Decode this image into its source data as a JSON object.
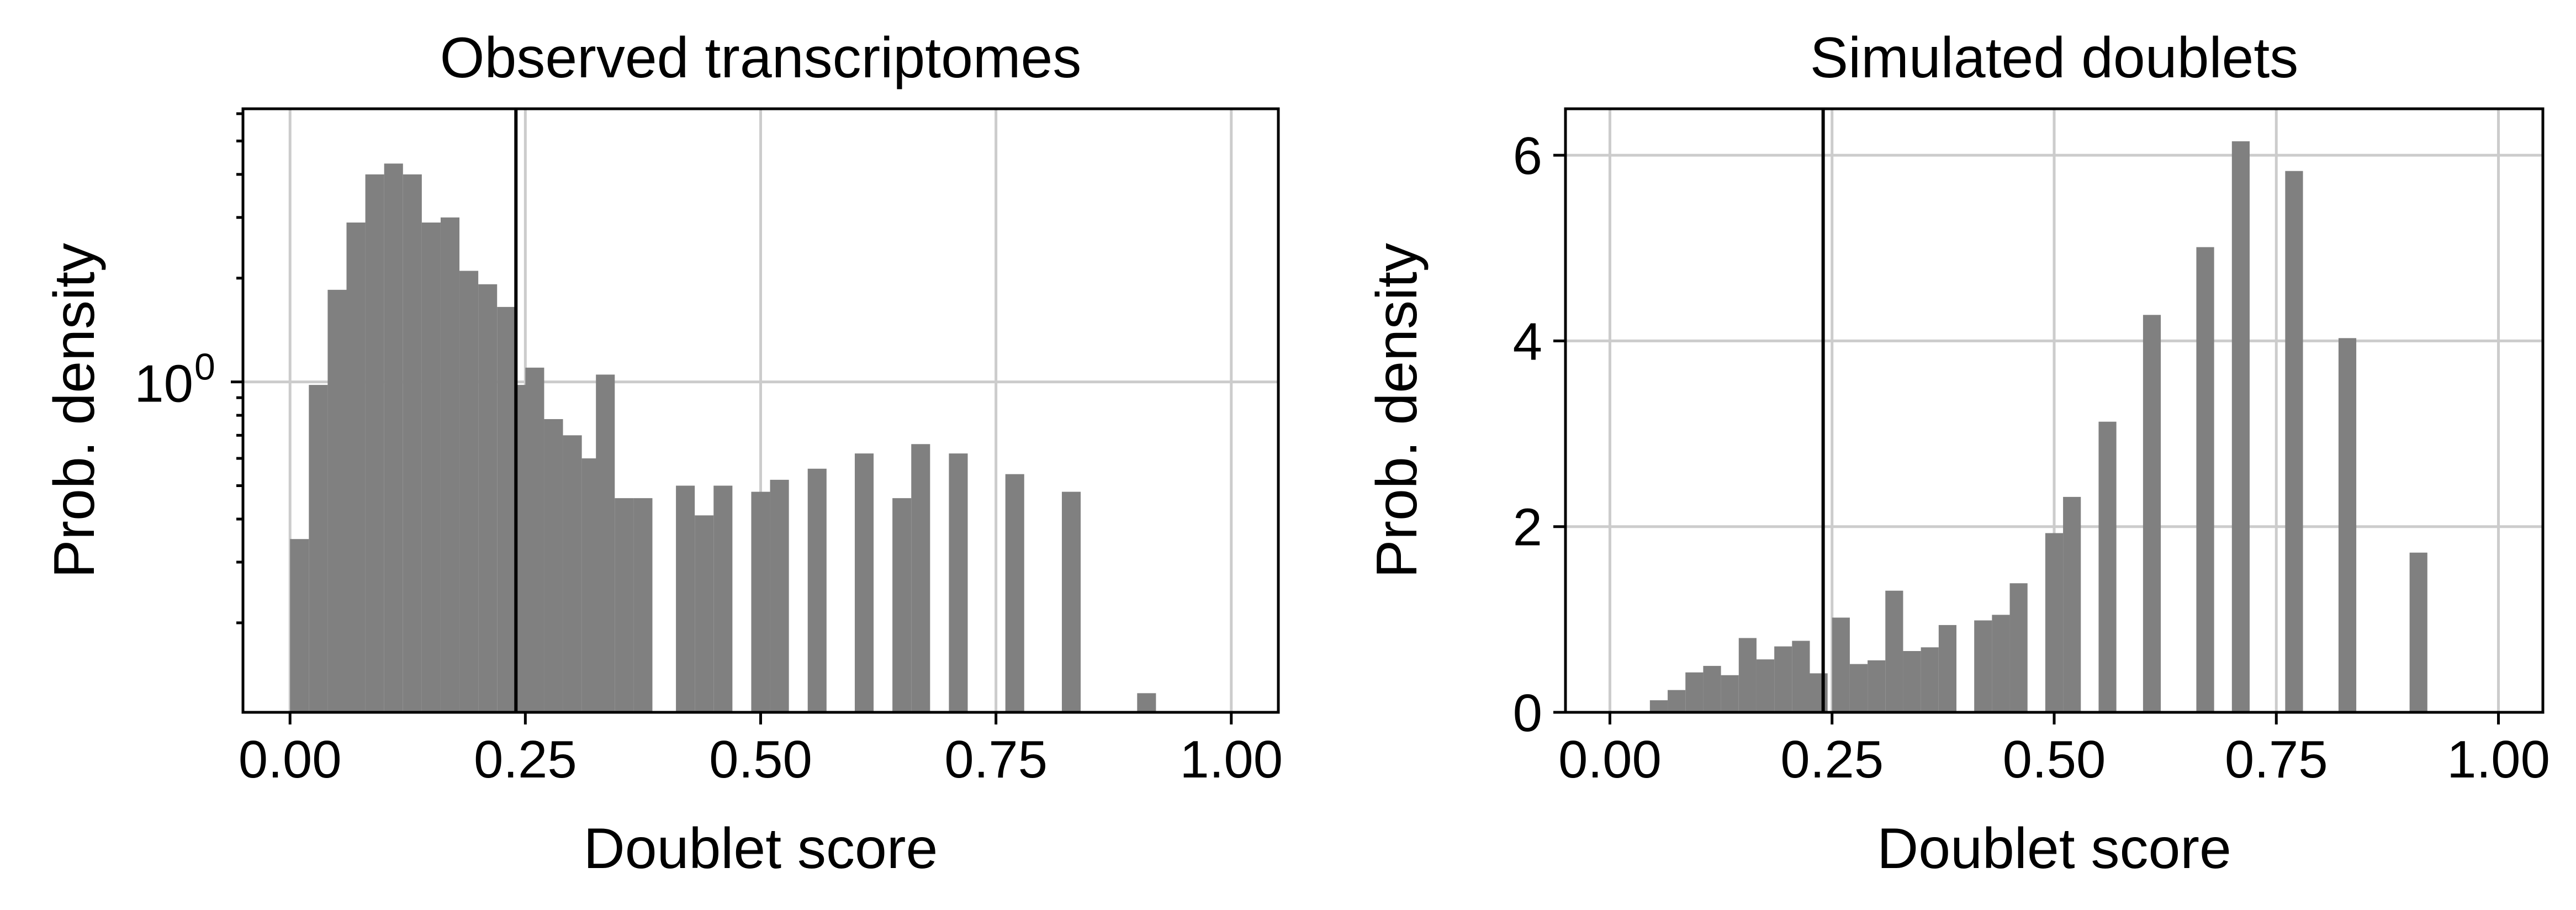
{
  "chart_data": [
    {
      "type": "bar",
      "title": "Observed transcriptomes",
      "xlabel": "Doublet score",
      "ylabel": "Prob. density",
      "yscale": "log",
      "xlim": [
        -0.05,
        1.05
      ],
      "ylim": [
        0.11,
        6.2
      ],
      "xticks": [
        0.0,
        0.25,
        0.5,
        0.75,
        1.0
      ],
      "xtick_labels": [
        "0.00",
        "0.25",
        "0.50",
        "0.75",
        "1.00"
      ],
      "yticks": [
        1
      ],
      "ytick_labels": [
        "10"
      ],
      "ytick_exponents": [
        "0"
      ],
      "grid": true,
      "threshold": 0.24,
      "bin_width": 0.02,
      "bins": [
        {
          "x": 0.0,
          "y": 0.35
        },
        {
          "x": 0.02,
          "y": 0.98
        },
        {
          "x": 0.04,
          "y": 1.85
        },
        {
          "x": 0.06,
          "y": 2.9
        },
        {
          "x": 0.08,
          "y": 4.0
        },
        {
          "x": 0.1,
          "y": 4.3
        },
        {
          "x": 0.12,
          "y": 4.0
        },
        {
          "x": 0.14,
          "y": 2.9
        },
        {
          "x": 0.16,
          "y": 3.0
        },
        {
          "x": 0.18,
          "y": 2.1
        },
        {
          "x": 0.2,
          "y": 1.92
        },
        {
          "x": 0.22,
          "y": 1.65
        },
        {
          "x": 0.24,
          "y": 0.98
        },
        {
          "x": 0.25,
          "y": 1.1
        },
        {
          "x": 0.27,
          "y": 0.78
        },
        {
          "x": 0.29,
          "y": 0.7
        },
        {
          "x": 0.31,
          "y": 0.6
        },
        {
          "x": 0.325,
          "y": 1.05
        },
        {
          "x": 0.345,
          "y": 0.46
        },
        {
          "x": 0.365,
          "y": 0.46
        },
        {
          "x": 0.41,
          "y": 0.5
        },
        {
          "x": 0.43,
          "y": 0.41
        },
        {
          "x": 0.45,
          "y": 0.5
        },
        {
          "x": 0.49,
          "y": 0.48
        },
        {
          "x": 0.51,
          "y": 0.52
        },
        {
          "x": 0.55,
          "y": 0.56
        },
        {
          "x": 0.6,
          "y": 0.62
        },
        {
          "x": 0.64,
          "y": 0.46
        },
        {
          "x": 0.66,
          "y": 0.66
        },
        {
          "x": 0.7,
          "y": 0.62
        },
        {
          "x": 0.76,
          "y": 0.54
        },
        {
          "x": 0.82,
          "y": 0.48
        },
        {
          "x": 0.9,
          "y": 0.125
        }
      ]
    },
    {
      "type": "bar",
      "title": "Simulated doublets",
      "xlabel": "Doublet score",
      "ylabel": "Prob. density",
      "yscale": "linear",
      "xlim": [
        -0.05,
        1.05
      ],
      "ylim": [
        0,
        6.5
      ],
      "xticks": [
        0.0,
        0.25,
        0.5,
        0.75,
        1.0
      ],
      "xtick_labels": [
        "0.00",
        "0.25",
        "0.50",
        "0.75",
        "1.00"
      ],
      "yticks": [
        0,
        2,
        4,
        6
      ],
      "ytick_labels": [
        "0",
        "2",
        "4",
        "6"
      ],
      "grid": true,
      "threshold": 0.24,
      "bin_width": 0.02,
      "bins": [
        {
          "x": 0.045,
          "y": 0.13
        },
        {
          "x": 0.065,
          "y": 0.24
        },
        {
          "x": 0.085,
          "y": 0.43
        },
        {
          "x": 0.105,
          "y": 0.5
        },
        {
          "x": 0.125,
          "y": 0.4
        },
        {
          "x": 0.145,
          "y": 0.8
        },
        {
          "x": 0.165,
          "y": 0.57
        },
        {
          "x": 0.185,
          "y": 0.71
        },
        {
          "x": 0.205,
          "y": 0.77
        },
        {
          "x": 0.225,
          "y": 0.42
        },
        {
          "x": 0.25,
          "y": 1.02
        },
        {
          "x": 0.27,
          "y": 0.52
        },
        {
          "x": 0.29,
          "y": 0.56
        },
        {
          "x": 0.31,
          "y": 1.31
        },
        {
          "x": 0.33,
          "y": 0.66
        },
        {
          "x": 0.35,
          "y": 0.7
        },
        {
          "x": 0.37,
          "y": 0.94
        },
        {
          "x": 0.41,
          "y": 0.99
        },
        {
          "x": 0.43,
          "y": 1.05
        },
        {
          "x": 0.45,
          "y": 1.39
        },
        {
          "x": 0.49,
          "y": 1.93
        },
        {
          "x": 0.51,
          "y": 2.32
        },
        {
          "x": 0.55,
          "y": 3.13
        },
        {
          "x": 0.6,
          "y": 4.28
        },
        {
          "x": 0.66,
          "y": 5.01
        },
        {
          "x": 0.7,
          "y": 6.15
        },
        {
          "x": 0.76,
          "y": 5.83
        },
        {
          "x": 0.82,
          "y": 4.03
        },
        {
          "x": 0.9,
          "y": 1.72
        }
      ]
    }
  ]
}
